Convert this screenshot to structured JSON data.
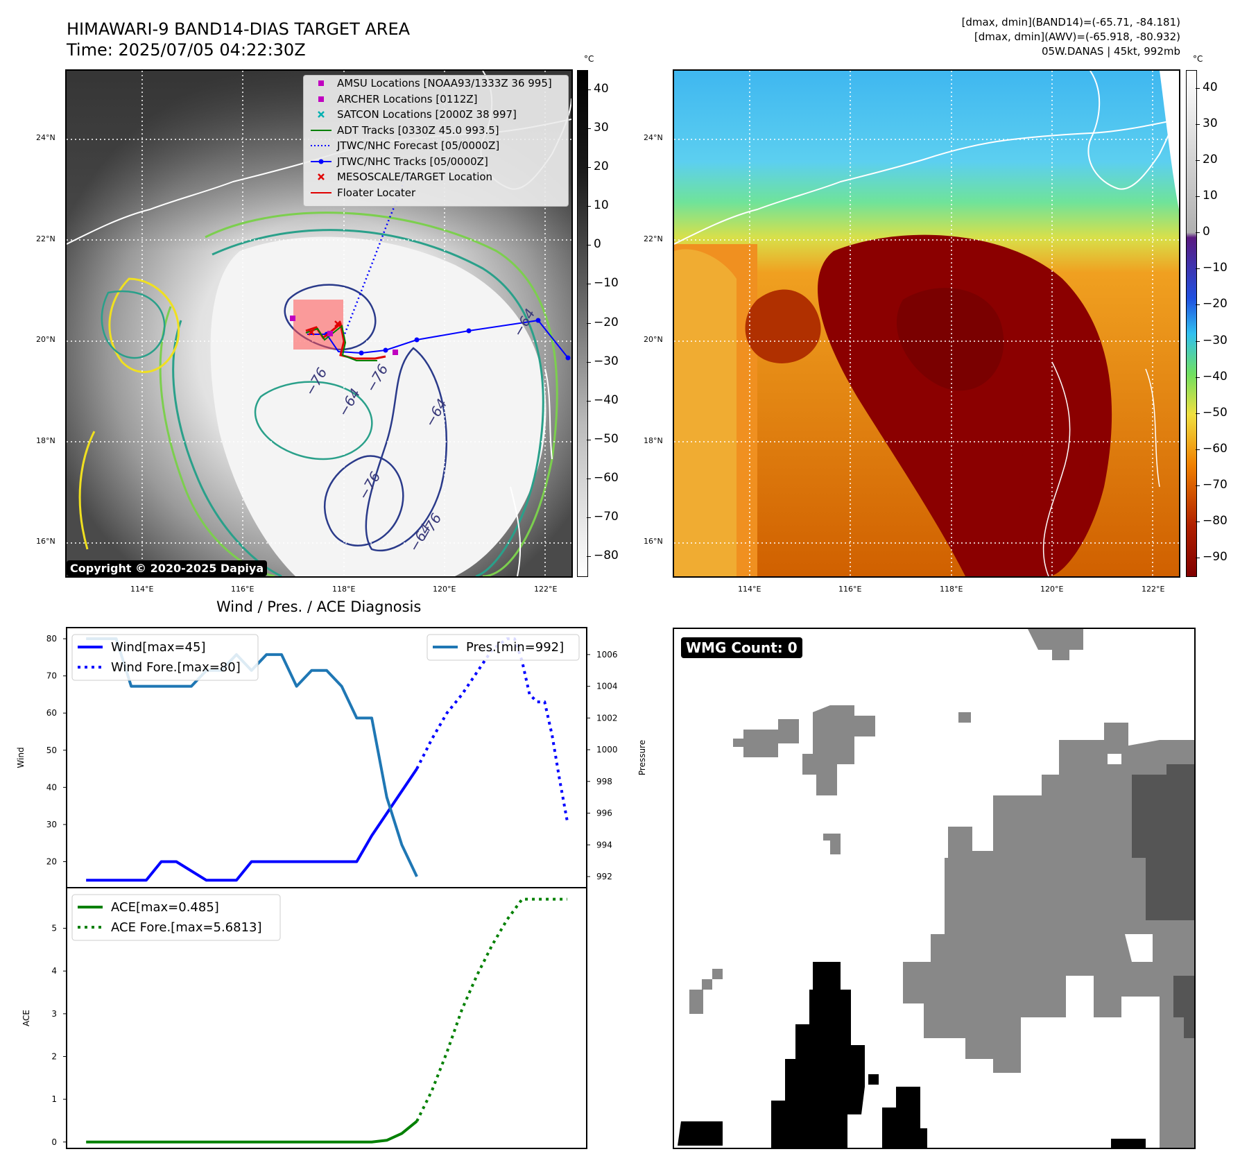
{
  "header": {
    "title_line1": "HIMAWARI-9 BAND14-DIAS TARGET AREA",
    "title_line2": "Time: 2025/07/05 04:22:30Z",
    "info_line1": "[dmax, dmin](BAND14)=(-65.71, -84.181)",
    "info_line2": "[dmax, dmin](AWV)=(-65.918, -80.932)",
    "info_line3": "05W.DANAS | 45kt, 992mb"
  },
  "maps": {
    "lat_labels": [
      "24°N",
      "22°N",
      "20°N",
      "18°N",
      "16°N"
    ],
    "lon_labels": [
      "114°E",
      "116°E",
      "118°E",
      "120°E",
      "122°E"
    ],
    "copyright": "Copyright © 2020-2025 Dapiya",
    "contour_labels": [
      "−76",
      "−76",
      "−64",
      "−64",
      "−76",
      "−76",
      "−64",
      "−64"
    ],
    "legend": [
      {
        "label": "AMSU Locations [NOAA93/1333Z 36 995]",
        "symbol": "square",
        "color": "#c000c0"
      },
      {
        "label": "ARCHER Locations [0112Z]",
        "symbol": "square",
        "color": "#c000c0"
      },
      {
        "label": "SATCON Locations [2000Z 38 997]",
        "symbol": "x",
        "color": "#00b0b0"
      },
      {
        "label": "ADT Tracks [0330Z 45.0 993.5]",
        "symbol": "line",
        "color": "#008000"
      },
      {
        "label": "JTWC/NHC Forecast [05/0000Z]",
        "symbol": "dotted",
        "color": "#0000ff"
      },
      {
        "label": "JTWC/NHC Tracks [05/0000Z]",
        "symbol": "line-dot",
        "color": "#0000ff"
      },
      {
        "label": "MESOSCALE/TARGET Location",
        "symbol": "x",
        "color": "#e00000"
      },
      {
        "label": "Floater Locater",
        "symbol": "line",
        "color": "#e00000"
      }
    ],
    "left_colorbar": {
      "unit": "°C",
      "ticks": [
        "40",
        "30",
        "20",
        "10",
        "0",
        "−10",
        "−20",
        "−30",
        "−40",
        "−50",
        "−60",
        "−70",
        "−80"
      ]
    },
    "right_colorbar": {
      "unit": "°C",
      "ticks": [
        "40",
        "30",
        "20",
        "10",
        "0",
        "−10",
        "−20",
        "−30",
        "−40",
        "−50",
        "−60",
        "−70",
        "−80",
        "−90"
      ]
    }
  },
  "chart_data": [
    {
      "type": "line",
      "title": "Wind / Pres. / ACE Diagnosis",
      "ylabel": "Wind",
      "ylabel_right": "Pressure",
      "ylim": [
        13,
        83
      ],
      "ylim_right": [
        991.3,
        1007.7
      ],
      "yticks": [
        "80",
        "70",
        "60",
        "50",
        "40",
        "30",
        "20"
      ],
      "yticks_right": [
        "1006",
        "1004",
        "1002",
        "1000",
        "998",
        "996",
        "994",
        "992"
      ],
      "x": [
        0,
        1,
        2,
        3,
        4,
        5,
        6,
        7,
        8,
        9,
        10,
        11,
        12,
        13,
        14,
        15,
        16,
        17,
        18,
        19,
        20,
        21,
        22,
        23,
        24,
        25,
        26,
        27,
        28,
        29,
        30
      ],
      "series": [
        {
          "name": "Wind[max=45]",
          "style": "solid",
          "color": "#0000ff",
          "axis": "left",
          "x": [
            0,
            3,
            4,
            5,
            6,
            8,
            9,
            10,
            11,
            13,
            14,
            15,
            16,
            17,
            18,
            19,
            20,
            21,
            22
          ],
          "values": [
            15,
            15,
            15,
            20,
            20,
            15,
            15,
            15,
            20,
            20,
            20,
            20,
            20,
            20,
            20,
            27,
            33,
            39,
            45
          ]
        },
        {
          "name": "Wind Fore.[max=80]",
          "style": "dotted",
          "color": "#0000ff",
          "axis": "left",
          "x": [
            22,
            23,
            24,
            25,
            26,
            27,
            28,
            28.5,
            29,
            29.5,
            30,
            30.5,
            31,
            31.5,
            32
          ],
          "values": [
            45,
            53,
            60,
            65,
            71,
            77,
            80,
            80,
            74,
            65,
            63,
            63,
            54,
            42,
            31
          ]
        },
        {
          "name": "Pres.[min=992]",
          "style": "solid",
          "color": "#1f77b4",
          "axis": "right",
          "x": [
            0,
            2,
            3,
            5,
            6,
            7,
            8,
            9,
            10,
            11,
            12,
            13,
            14,
            15,
            16,
            17,
            18,
            19,
            20,
            21,
            22
          ],
          "values": [
            1007,
            1007,
            1004,
            1004,
            1004,
            1004,
            1005,
            1005,
            1006,
            1005,
            1006,
            1006,
            1004,
            1005,
            1005,
            1004,
            1002,
            1002,
            997,
            994,
            992
          ]
        },
        {
          "name": "Wind Fore.[max=80] tail",
          "style": "dotted",
          "color": "#0000ff",
          "axis": "left",
          "x": [
            28.5,
            29,
            29.5,
            30,
            30.5,
            31,
            31.5,
            32
          ],
          "values": [
            74,
            65,
            63,
            63,
            54,
            42,
            31,
            20
          ]
        }
      ]
    },
    {
      "type": "line",
      "ylabel": "ACE",
      "ylim": [
        -0.15,
        5.95
      ],
      "yticks": [
        "5",
        "4",
        "3",
        "2",
        "1",
        "0"
      ],
      "series": [
        {
          "name": "ACE[max=0.485]",
          "style": "solid",
          "color": "#008000",
          "x": [
            0,
            17,
            18,
            19,
            20,
            21,
            22
          ],
          "values": [
            0,
            0,
            0,
            0,
            0.04,
            0.2,
            0.485
          ]
        },
        {
          "name": "ACE Fore.[max=5.6813]",
          "style": "dotted",
          "color": "#008000",
          "x": [
            22,
            23,
            24,
            25,
            26,
            27,
            28,
            29,
            30,
            31,
            32
          ],
          "values": [
            0.485,
            1.2,
            2.1,
            3.1,
            3.9,
            4.6,
            5.2,
            5.68,
            5.68,
            5.68,
            5.68
          ]
        }
      ]
    }
  ],
  "wmg": {
    "label": "WMG Count: 0"
  }
}
